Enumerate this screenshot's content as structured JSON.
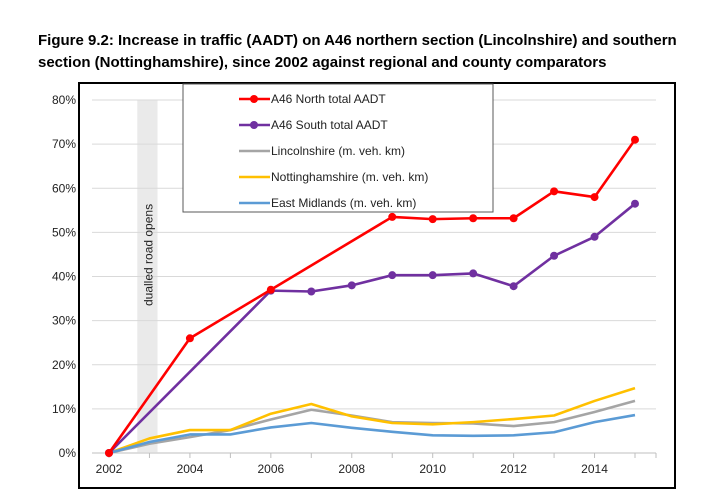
{
  "chart_data": {
    "type": "line",
    "title": "Figure 9.2: Increase in traffic (AADT) on A46 northern section (Lincolnshire) and southern section (Nottinghamshire), since 2002 against regional and county comparators",
    "xlabel": "",
    "ylabel": "",
    "xlim": [
      2002,
      2015
    ],
    "ylim": [
      0,
      80
    ],
    "x_ticks": [
      2002,
      2004,
      2006,
      2008,
      2010,
      2012,
      2014
    ],
    "y_ticks": [
      "0%",
      "10%",
      "20%",
      "30%",
      "40%",
      "50%",
      "60%",
      "70%",
      "80%"
    ],
    "grid": "horizontal",
    "legend_position": "top",
    "annotation": {
      "label": "dualled road opens",
      "x_range": [
        2002.7,
        2003.2
      ]
    },
    "series": [
      {
        "name": "A46 North total AADT",
        "color": "#ff0000",
        "markers": true,
        "x": [
          2002,
          2004,
          2006,
          2009,
          2010,
          2011,
          2012,
          2013,
          2014,
          2015
        ],
        "values": [
          0,
          26,
          37,
          53.5,
          53,
          53.2,
          53.2,
          59.3,
          58,
          71
        ]
      },
      {
        "name": "A46 South total AADT",
        "color": "#7030a0",
        "markers": true,
        "x": [
          2002,
          2006,
          2007,
          2008,
          2009,
          2010,
          2011,
          2012,
          2013,
          2014,
          2015
        ],
        "values": [
          0,
          36.8,
          36.6,
          38,
          40.3,
          40.3,
          40.7,
          37.8,
          44.7,
          49,
          56.5
        ]
      },
      {
        "name": "Lincolnshire (m. veh. km)",
        "color": "#a5a5a5",
        "markers": false,
        "x": [
          2002,
          2003,
          2004,
          2005,
          2006,
          2007,
          2008,
          2009,
          2010,
          2011,
          2012,
          2013,
          2014,
          2015
        ],
        "values": [
          0,
          2.1,
          3.6,
          5.2,
          7.6,
          9.8,
          8.5,
          7.0,
          6.8,
          6.7,
          6.1,
          7.0,
          9.3,
          11.8
        ]
      },
      {
        "name": "Nottinghamshire (m. veh. km)",
        "color": "#ffc000",
        "markers": false,
        "x": [
          2002,
          2003,
          2004,
          2005,
          2006,
          2007,
          2008,
          2009,
          2010,
          2011,
          2012,
          2013,
          2014,
          2015
        ],
        "values": [
          0,
          3.3,
          5.2,
          5.2,
          8.9,
          11.1,
          8.3,
          6.8,
          6.5,
          7.0,
          7.7,
          8.5,
          11.8,
          14.7
        ]
      },
      {
        "name": "East Midlands (m. veh. km)",
        "color": "#5b9bd5",
        "markers": false,
        "x": [
          2002,
          2003,
          2004,
          2005,
          2006,
          2007,
          2008,
          2009,
          2010,
          2011,
          2012,
          2013,
          2014,
          2015
        ],
        "values": [
          0,
          2.5,
          4.2,
          4.2,
          5.8,
          6.8,
          5.7,
          4.8,
          4.0,
          3.9,
          4.0,
          4.7,
          7.0,
          8.6
        ]
      }
    ]
  }
}
